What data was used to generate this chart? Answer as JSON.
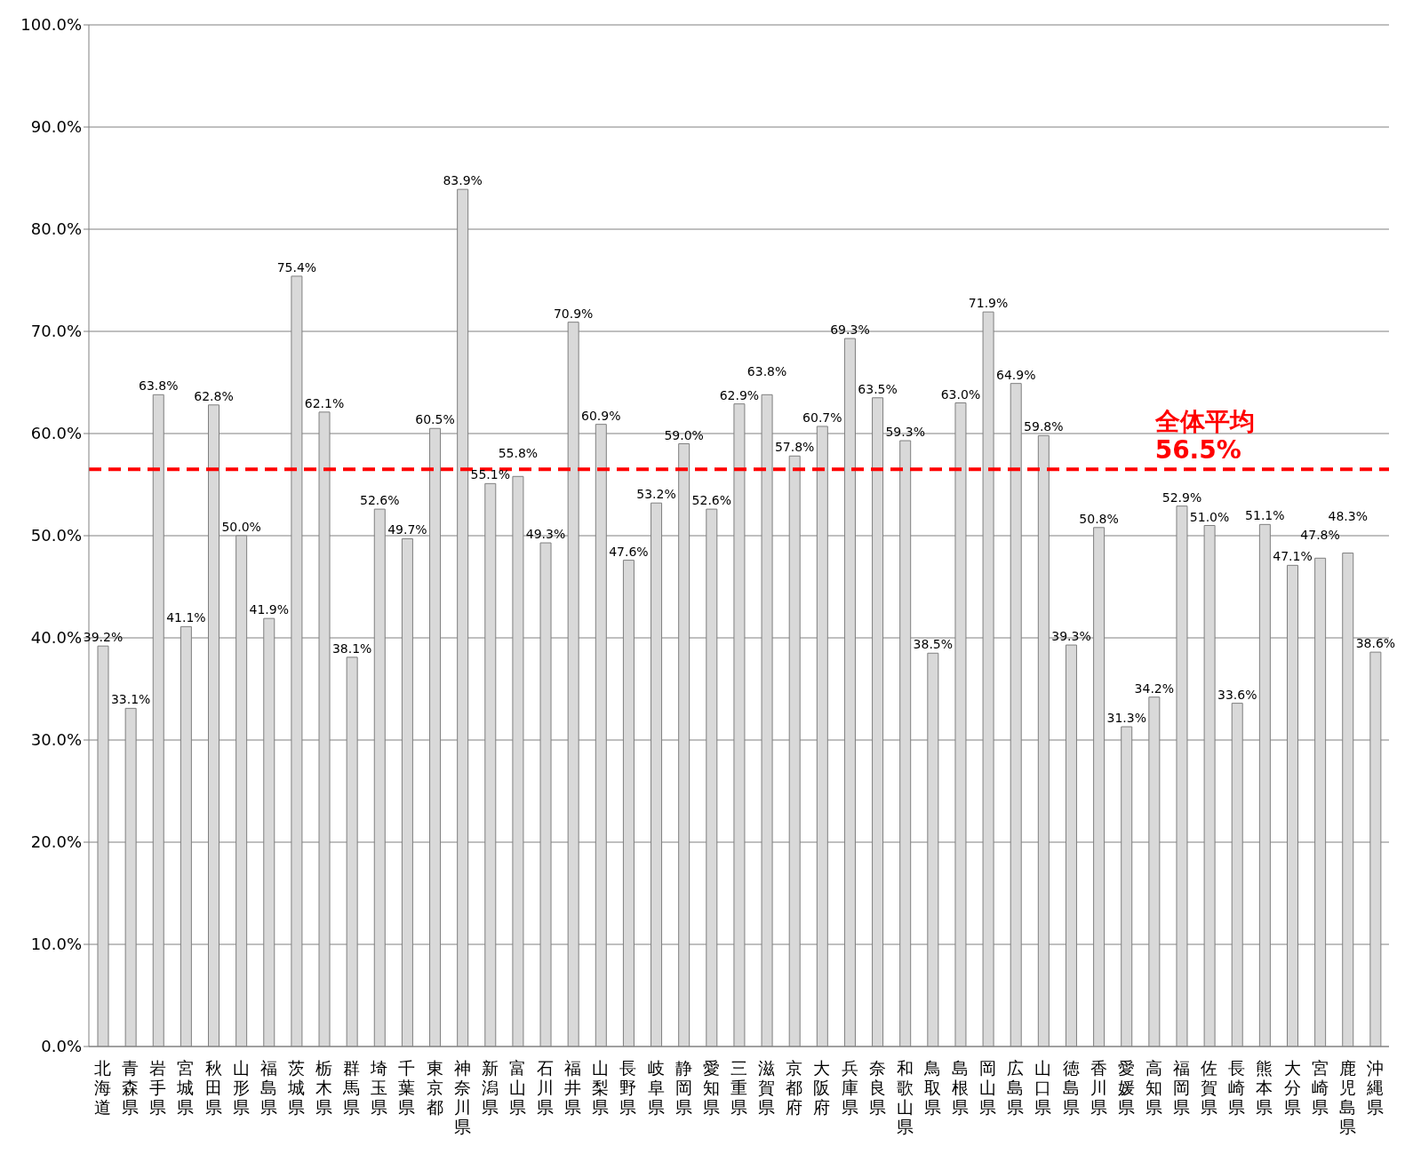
{
  "chart_data": {
    "type": "bar",
    "categories": [
      "北海道",
      "青森県",
      "岩手県",
      "宮城県",
      "秋田県",
      "山形県",
      "福島県",
      "茨城県",
      "栃木県",
      "群馬県",
      "埼玉県",
      "千葉県",
      "東京都",
      "神奈川県",
      "新潟県",
      "富山県",
      "石川県",
      "福井県",
      "山梨県",
      "長野県",
      "岐阜県",
      "静岡県",
      "愛知県",
      "三重県",
      "滋賀県",
      "京都府",
      "大阪府",
      "兵庫県",
      "奈良県",
      "和歌山県",
      "鳥取県",
      "島根県",
      "岡山県",
      "広島県",
      "山口県",
      "徳島県",
      "香川県",
      "愛媛県",
      "高知県",
      "福岡県",
      "佐賀県",
      "長崎県",
      "熊本県",
      "大分県",
      "宮崎県",
      "鹿児島県",
      "沖縄県"
    ],
    "values": [
      39.2,
      33.1,
      63.8,
      41.1,
      62.8,
      50.0,
      41.9,
      75.4,
      62.1,
      38.1,
      52.6,
      49.7,
      60.5,
      83.9,
      55.1,
      55.8,
      49.3,
      70.9,
      60.9,
      47.6,
      53.2,
      59.0,
      52.6,
      62.9,
      63.8,
      57.8,
      60.7,
      69.3,
      63.5,
      59.3,
      38.5,
      63.0,
      71.9,
      64.9,
      59.8,
      39.3,
      50.8,
      31.3,
      34.2,
      52.9,
      51.0,
      33.6,
      51.1,
      47.1,
      47.8,
      48.3,
      38.6
    ],
    "value_labels": [
      "39.2%",
      "33.1%",
      "63.8%",
      "41.1%",
      "62.8%",
      "50.0%",
      "41.9%",
      "75.4%",
      "62.1%",
      "38.1%",
      "52.6%",
      "49.7%",
      "60.5%",
      "83.9%",
      "55.1%",
      "55.8%",
      "49.3%",
      "70.9%",
      "60.9%",
      "47.6%",
      "53.2%",
      "59.0%",
      "52.6%",
      "62.9%",
      "63.8%",
      "57.8%",
      "60.7%",
      "69.3%",
      "63.5%",
      "59.3%",
      "38.5%",
      "63.0%",
      "71.9%",
      "64.9%",
      "59.8%",
      "39.3%",
      "50.8%",
      "31.3%",
      "34.2%",
      "52.9%",
      "51.0%",
      "33.6%",
      "51.1%",
      "47.1%",
      "47.8%",
      "48.3%",
      "38.6%"
    ],
    "color": "#d9d9d9",
    "ylim": [
      0,
      100
    ],
    "yticks": [
      {
        "value": 0,
        "label": "0.0%"
      },
      {
        "value": 10,
        "label": "10.0%"
      },
      {
        "value": 20,
        "label": "20.0%"
      },
      {
        "value": 30,
        "label": "30.0%"
      },
      {
        "value": 40,
        "label": "40.0%"
      },
      {
        "value": 50,
        "label": "50.0%"
      },
      {
        "value": 60,
        "label": "60.0%"
      },
      {
        "value": 70,
        "label": "70.0%"
      },
      {
        "value": 80,
        "label": "80.0%"
      },
      {
        "value": 90,
        "label": "90.0%"
      },
      {
        "value": 100,
        "label": "100.0%"
      }
    ],
    "grid": "y",
    "legend": false,
    "ref_lines": [
      {
        "axis": "y",
        "value": 56.5,
        "label": "全体平均\n56.5%",
        "color": "#ff0000",
        "line_style": "dashed"
      }
    ]
  }
}
